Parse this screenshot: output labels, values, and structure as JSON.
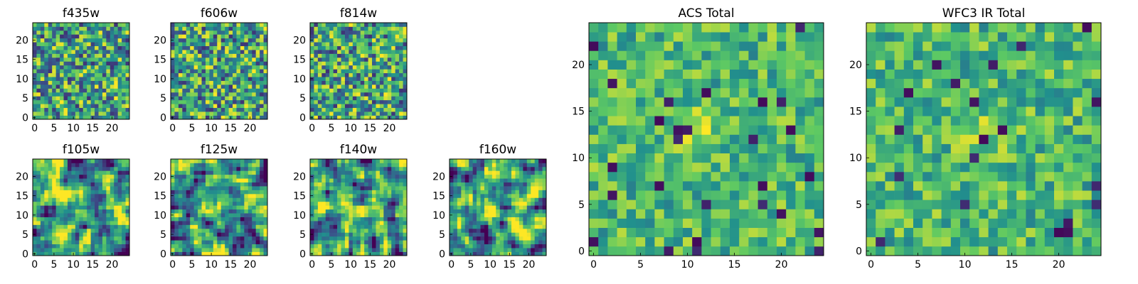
{
  "figure": {
    "colormap": "viridis",
    "colormap_stops": [
      "#440154",
      "#3b528b",
      "#21908d",
      "#5dc963",
      "#fde725"
    ]
  },
  "chart_data": [
    {
      "type": "heatmap",
      "title": "f435w",
      "grid_size": [
        25,
        25
      ],
      "xticks": [
        "0",
        "5",
        "10",
        "15",
        "20"
      ],
      "yticks": [
        "0",
        "5",
        "10",
        "15",
        "20"
      ],
      "xlim": [
        -0.5,
        24.5
      ],
      "ylim": [
        -0.5,
        24.5
      ],
      "grid": false,
      "value_range": [
        0,
        1
      ],
      "texture": "fine noise, high-contrast (per-pixel)",
      "seed": 11
    },
    {
      "type": "heatmap",
      "title": "f606w",
      "grid_size": [
        25,
        25
      ],
      "xticks": [
        "0",
        "5",
        "10",
        "15",
        "20"
      ],
      "yticks": [
        "0",
        "5",
        "10",
        "15",
        "20"
      ],
      "xlim": [
        -0.5,
        24.5
      ],
      "ylim": [
        -0.5,
        24.5
      ],
      "grid": false,
      "value_range": [
        0,
        1
      ],
      "texture": "fine noise, high-contrast (per-pixel)",
      "seed": 23
    },
    {
      "type": "heatmap",
      "title": "f814w",
      "grid_size": [
        25,
        25
      ],
      "xticks": [
        "0",
        "5",
        "10",
        "15",
        "20"
      ],
      "yticks": [
        "0",
        "5",
        "10",
        "15",
        "20"
      ],
      "xlim": [
        -0.5,
        24.5
      ],
      "ylim": [
        -0.5,
        24.5
      ],
      "grid": false,
      "value_range": [
        0,
        1
      ],
      "texture": "fine noise, high-contrast (per-pixel)",
      "seed": 37
    },
    {
      "type": "heatmap",
      "title": "f105w",
      "grid_size": [
        25,
        25
      ],
      "xticks": [
        "0",
        "5",
        "10",
        "15",
        "20"
      ],
      "yticks": [
        "0",
        "5",
        "10",
        "15",
        "20"
      ],
      "xlim": [
        -0.5,
        24.5
      ],
      "ylim": [
        -0.5,
        24.5
      ],
      "grid": false,
      "value_range": [
        0,
        1
      ],
      "texture": "smoothed noise, brighter center",
      "seed": 41
    },
    {
      "type": "heatmap",
      "title": "f125w",
      "grid_size": [
        25,
        25
      ],
      "xticks": [
        "0",
        "5",
        "10",
        "15",
        "20"
      ],
      "yticks": [
        "0",
        "5",
        "10",
        "15",
        "20"
      ],
      "xlim": [
        -0.5,
        24.5
      ],
      "ylim": [
        -0.5,
        24.5
      ],
      "grid": false,
      "value_range": [
        0,
        1
      ],
      "texture": "smoothed noise",
      "seed": 53
    },
    {
      "type": "heatmap",
      "title": "f140w",
      "grid_size": [
        25,
        25
      ],
      "xticks": [
        "0",
        "5",
        "10",
        "15",
        "20"
      ],
      "yticks": [
        "0",
        "5",
        "10",
        "15",
        "20"
      ],
      "xlim": [
        -0.5,
        24.5
      ],
      "ylim": [
        -0.5,
        24.5
      ],
      "grid": false,
      "value_range": [
        0,
        1
      ],
      "texture": "smoothed noise",
      "seed": 67
    },
    {
      "type": "heatmap",
      "title": "f160w",
      "grid_size": [
        25,
        25
      ],
      "xticks": [
        "0",
        "5",
        "10",
        "15",
        "20"
      ],
      "yticks": [
        "0",
        "5",
        "10",
        "15",
        "20"
      ],
      "xlim": [
        -0.5,
        24.5
      ],
      "ylim": [
        -0.5,
        24.5
      ],
      "grid": false,
      "value_range": [
        0,
        1
      ],
      "texture": "smoothed noise, bright center",
      "seed": 79
    },
    {
      "type": "heatmap",
      "title": "ACS Total",
      "grid_size": [
        25,
        25
      ],
      "xticks": [
        "0",
        "5",
        "10",
        "15",
        "20"
      ],
      "yticks": [
        "0",
        "5",
        "10",
        "15",
        "20"
      ],
      "xlim": [
        -0.5,
        24.5
      ],
      "ylim": [
        -0.5,
        24.5
      ],
      "grid": false,
      "value_range": [
        0,
        1
      ],
      "texture": "noise with bright central source near (11, 13)",
      "seed": 83
    },
    {
      "type": "heatmap",
      "title": "WFC3 IR Total",
      "grid_size": [
        25,
        25
      ],
      "xticks": [
        "0",
        "5",
        "10",
        "15",
        "20"
      ],
      "yticks": [
        "0",
        "5",
        "10",
        "15",
        "20"
      ],
      "xlim": [
        -0.5,
        24.5
      ],
      "ylim": [
        -0.5,
        24.5
      ],
      "grid": false,
      "value_range": [
        0,
        1
      ],
      "texture": "noise with bright band near y=13..15 and source near (12, 13)",
      "seed": 97
    }
  ]
}
